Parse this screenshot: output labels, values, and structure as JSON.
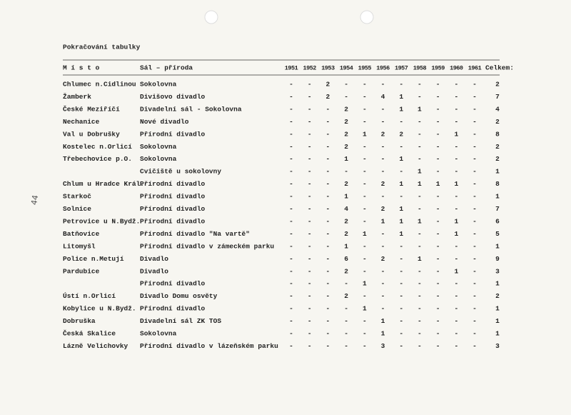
{
  "header": {
    "title": "Pokračování tabulky",
    "page_number": "44"
  },
  "table": {
    "columns": {
      "place": "M í s t o",
      "venue": "Sál – příroda",
      "years": [
        "1951",
        "1952",
        "1953",
        "1954",
        "1955",
        "1956",
        "1957",
        "1958",
        "1959",
        "1960",
        "1961"
      ],
      "total": "Celkem:"
    },
    "rows": [
      {
        "place": "Chlumec n.Cidlinou",
        "venue": "Sokolovna",
        "values": [
          "-",
          "-",
          2,
          "-",
          "-",
          "-",
          "-",
          "-",
          "-",
          "-",
          "-"
        ],
        "total": 2
      },
      {
        "place": "Žamberk",
        "venue": "Divišovo divadlo",
        "values": [
          "-",
          "-",
          2,
          "-",
          "-",
          4,
          1,
          "-",
          "-",
          "-",
          "-"
        ],
        "total": 7
      },
      {
        "place": "České Meziříčí",
        "venue": "Divadelní sál - Sokolovna",
        "values": [
          "-",
          "-",
          "-",
          2,
          "-",
          "-",
          1,
          1,
          "-",
          "-",
          "-"
        ],
        "total": 4
      },
      {
        "place": "Nechanice",
        "venue": "Nové divadlo",
        "values": [
          "-",
          "-",
          "-",
          2,
          "-",
          "-",
          "-",
          "-",
          "-",
          "-",
          "-"
        ],
        "total": 2
      },
      {
        "place": "Val u Dobrušky",
        "venue": "Přírodní divadlo",
        "values": [
          "-",
          "-",
          "-",
          2,
          1,
          2,
          2,
          "-",
          "-",
          1,
          "-"
        ],
        "total": 8
      },
      {
        "place": "Kostelec n.Orlicí",
        "venue": "Sokolovna",
        "values": [
          "-",
          "-",
          "-",
          2,
          "-",
          "-",
          "-",
          "-",
          "-",
          "-",
          "-"
        ],
        "total": 2
      },
      {
        "place": "Třebechovice p.O.",
        "venue": "Sokolovna",
        "values": [
          "-",
          "-",
          "-",
          1,
          "-",
          "-",
          1,
          "-",
          "-",
          "-",
          "-"
        ],
        "total": 2
      },
      {
        "venue": "Cvičiště u sokolovny",
        "values": [
          "-",
          "-",
          "-",
          "-",
          "-",
          "-",
          "-",
          1,
          "-",
          "-",
          "-"
        ],
        "total": 1
      },
      {
        "place": "Chlum u Hradce Král.",
        "venue": "Přírodní divadlo",
        "values": [
          "-",
          "-",
          "-",
          2,
          "-",
          2,
          1,
          1,
          1,
          1,
          "-"
        ],
        "total": 8
      },
      {
        "place": "Starkoč",
        "venue": "Přírodní divadlo",
        "values": [
          "-",
          "-",
          "-",
          1,
          "-",
          "-",
          "-",
          "-",
          "-",
          "-",
          "-"
        ],
        "total": 1
      },
      {
        "place": "Solnice",
        "venue": "Přírodní divadlo",
        "values": [
          "-",
          "-",
          "-",
          4,
          "-",
          2,
          1,
          "-",
          "-",
          "-",
          "-"
        ],
        "total": 7
      },
      {
        "place": "Petrovice u N.Bydž.",
        "venue": "Přírodní divadlo",
        "values": [
          "-",
          "-",
          "-",
          2,
          "-",
          1,
          1,
          1,
          "-",
          1,
          "-"
        ],
        "total": 6
      },
      {
        "place": "Batňovice",
        "venue": "Přírodní divadlo \"Na vartě\"",
        "values": [
          "-",
          "-",
          "-",
          2,
          1,
          "-",
          1,
          "-",
          "-",
          1,
          "-"
        ],
        "total": 5
      },
      {
        "place": "Litomyšl",
        "venue": "Přírodní divadlo v zámeckém parku",
        "values": [
          "-",
          "-",
          "-",
          1,
          "-",
          "-",
          "-",
          "-",
          "-",
          "-",
          "-"
        ],
        "total": 1
      },
      {
        "place": "Police n.Metují",
        "venue": "Divadlo",
        "values": [
          "-",
          "-",
          "-",
          6,
          "-",
          2,
          "-",
          1,
          "-",
          "-",
          "-"
        ],
        "total": 9
      },
      {
        "place": "Pardubice",
        "venue": "Divadlo",
        "values": [
          "-",
          "-",
          "-",
          2,
          "-",
          "-",
          "-",
          "-",
          "-",
          1,
          "-"
        ],
        "total": 3
      },
      {
        "venue": "Přírodní divadlo",
        "values": [
          "-",
          "-",
          "-",
          "-",
          1,
          "-",
          "-",
          "-",
          "-",
          "-",
          "-"
        ],
        "total": 1
      },
      {
        "place": "Ústí n.Orlicí",
        "venue": "Divadlo Domu osvěty",
        "values": [
          "-",
          "-",
          "-",
          2,
          "-",
          "-",
          "-",
          "-",
          "-",
          "-",
          "-"
        ],
        "total": 2
      },
      {
        "place": "Kobylice u N.Bydž.",
        "venue": "Přírodní divadlo",
        "values": [
          "-",
          "-",
          "-",
          "-",
          1,
          "-",
          "-",
          "-",
          "-",
          "-",
          "-"
        ],
        "total": 1
      },
      {
        "place": "Dobruška",
        "venue": "Divadelní sál ZK TOS",
        "values": [
          "-",
          "-",
          "-",
          "-",
          "-",
          1,
          "-",
          "-",
          "-",
          "-",
          "-"
        ],
        "total": 1
      },
      {
        "place": "Česká Skalice",
        "venue": "Sokolovna",
        "values": [
          "-",
          "-",
          "-",
          "-",
          "-",
          1,
          "-",
          "-",
          "-",
          "-",
          "-"
        ],
        "total": 1
      },
      {
        "place": "Lázně Velichovky",
        "venue": "Přírodní divadlo v lázeňském parku",
        "values": [
          "-",
          "-",
          "-",
          "-",
          "-",
          3,
          "-",
          "-",
          "-",
          "-",
          "-"
        ],
        "total": 3
      }
    ]
  }
}
